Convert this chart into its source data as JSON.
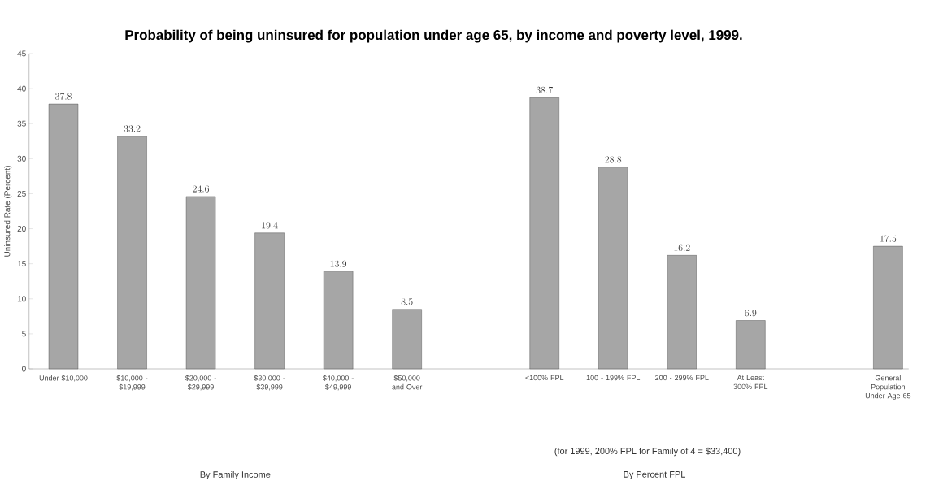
{
  "chart_data": {
    "type": "bar",
    "title": "Probability of being uninsured for population under age 65, by income and poverty level, 1999.",
    "ylabel": "Uninsured Rate (Percent)",
    "categories": [
      "Under $10,000",
      "$10,000 - $19,999",
      "$20,000 - $29,999",
      "$30,000 - $39,999",
      "$40,000 - $49,999",
      "$50,000 and Over",
      null,
      "<100% FPL",
      "100 - 199% FPL",
      "200 - 299% FPL",
      "At Least 300% FPL",
      null,
      "General Population Under Age 65"
    ],
    "values": [
      37.8,
      33.2,
      24.6,
      19.4,
      13.9,
      8.5,
      null,
      38.7,
      28.8,
      16.2,
      6.9,
      null,
      17.5
    ],
    "color": "#a6a6a6",
    "ylim": [
      0,
      45
    ],
    "yticks": [
      0,
      5,
      10,
      15,
      20,
      25,
      30,
      35,
      40,
      45
    ],
    "data_labels": true,
    "annotations": [
      "(for 1999, 200% FPL for Family of 4 = $33,400)",
      "By Family Income",
      "By Percent FPL"
    ]
  }
}
